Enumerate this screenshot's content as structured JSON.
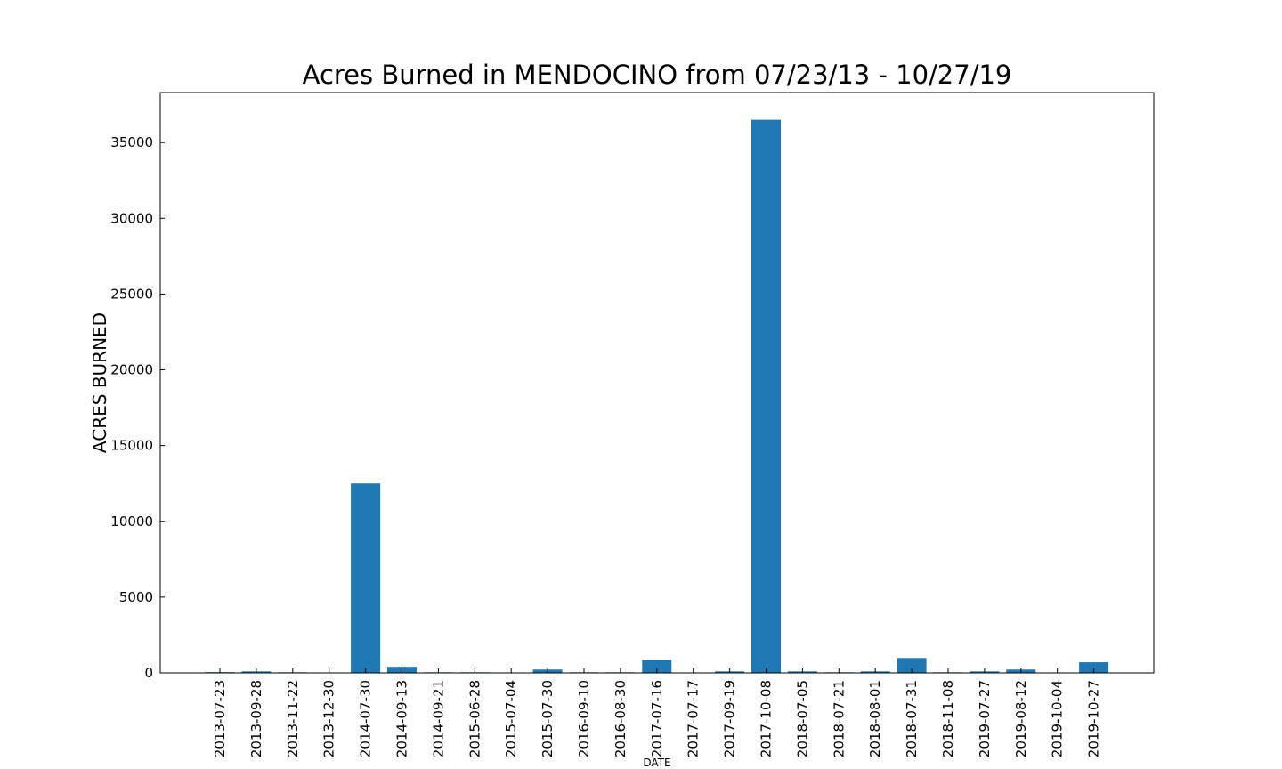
{
  "chart_data": {
    "type": "bar",
    "title": "Acres Burned in MENDOCINO from 07/23/13 - 10/27/19",
    "xlabel": "DATE",
    "ylabel": "ACRES BURNED",
    "categories": [
      "2013-07-23",
      "2013-09-28",
      "2013-11-22",
      "2013-12-30",
      "2014-07-30",
      "2014-09-13",
      "2014-09-21",
      "2015-06-28",
      "2015-07-04",
      "2015-07-30",
      "2016-09-10",
      "2016-08-30",
      "2017-07-16",
      "2017-07-17",
      "2017-09-19",
      "2017-10-08",
      "2018-07-05",
      "2018-07-21",
      "2018-08-01",
      "2018-07-31",
      "2018-11-08",
      "2019-07-27",
      "2019-08-12",
      "2019-10-04",
      "2019-10-27"
    ],
    "values": [
      50,
      100,
      40,
      5,
      12500,
      400,
      40,
      40,
      5,
      220,
      40,
      40,
      850,
      5,
      100,
      36500,
      100,
      40,
      100,
      980,
      40,
      100,
      220,
      5,
      700
    ],
    "ylim": [
      0,
      38300
    ],
    "yticks": [
      0,
      5000,
      10000,
      15000,
      20000,
      25000,
      30000,
      35000
    ],
    "bar_color": "#1f77b4",
    "grid": false,
    "legend": false
  }
}
